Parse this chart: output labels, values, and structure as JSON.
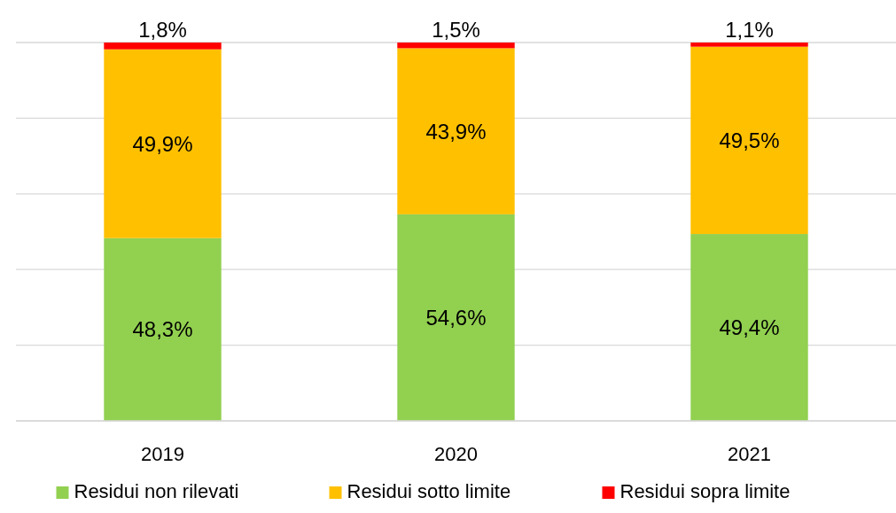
{
  "chart_data": {
    "type": "bar",
    "stacked": true,
    "categories": [
      "2019",
      "2020",
      "2021"
    ],
    "series": [
      {
        "name": "Residui non rilevati",
        "color": "#92d050",
        "values": [
          48.3,
          54.6,
          49.4
        ],
        "value_labels": [
          "48,3%",
          "54,6%",
          "49,4%"
        ]
      },
      {
        "name": "Residui sotto limite",
        "color": "#ffc000",
        "values": [
          49.9,
          43.9,
          49.5
        ],
        "value_labels": [
          "49,9%",
          "43,9%",
          "49,5%"
        ]
      },
      {
        "name": "Residui sopra limite",
        "color": "#ff0000",
        "values": [
          1.8,
          1.5,
          1.1
        ],
        "value_labels": [
          "1,8%",
          "1,5%",
          "1,1%"
        ]
      }
    ],
    "ylim": [
      0,
      100
    ],
    "yticks": [
      {
        "value": 0,
        "label": null
      },
      {
        "value": 20,
        "label": null
      },
      {
        "value": 40,
        "label": null
      },
      {
        "value": 60,
        "label": null
      },
      {
        "value": 80,
        "label": null
      },
      {
        "value": 100,
        "label": null
      }
    ],
    "grid": "y",
    "tick_labels": "x",
    "legend": "bottom"
  }
}
